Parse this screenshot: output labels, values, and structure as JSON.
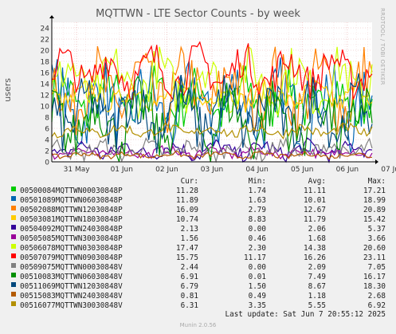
{
  "title": "MQTTWN - LTE Sector Counts - by week",
  "side_text": "RRDTOOL / TOBI OETIKER",
  "ylabel": "users",
  "legend_headers": {
    "cur": "Cur:",
    "min": "Min:",
    "avg": "Avg:",
    "max": "Max:"
  },
  "last_update": "Last update: Sat Jun  7 20:55:12 2025",
  "footer": "Munin 2.0.56",
  "chart_data": {
    "type": "line",
    "title": "MQTTWN - LTE Sector Counts - by week",
    "ylabel": "users",
    "ylim": [
      0,
      25
    ],
    "yticks": [
      0,
      2,
      4,
      6,
      8,
      10,
      12,
      14,
      16,
      18,
      20,
      22,
      24
    ],
    "x_ticks": [
      "31 May",
      "01 Jun",
      "02 Jun",
      "03 Jun",
      "04 Jun",
      "05 Jun",
      "06 Jun",
      "07 Jun"
    ],
    "x_range_days": [
      0,
      7.1
    ],
    "x_tick_days": [
      0.55,
      1.55,
      2.55,
      3.55,
      4.55,
      5.55,
      6.55,
      7.55
    ],
    "grid": true,
    "series": [
      {
        "name": "00500084MQTTWN00030848P",
        "color": "#00cc00",
        "cur": "11.28",
        "min": "1.74",
        "avg": "11.11",
        "max": "17.21"
      },
      {
        "name": "00501089MQTTWN06030848P",
        "color": "#0066b3",
        "cur": "11.89",
        "min": "1.63",
        "avg": "10.01",
        "max": "18.99"
      },
      {
        "name": "00502088MQTTWN12030848P",
        "color": "#ff8000",
        "cur": "16.09",
        "min": "2.79",
        "avg": "12.67",
        "max": "20.89"
      },
      {
        "name": "00503081MQTTWN18030848P",
        "color": "#ffcc00",
        "cur": "10.74",
        "min": "8.83",
        "avg": "11.79",
        "max": "15.42"
      },
      {
        "name": "00504092MQTTWN24030848P",
        "color": "#330099",
        "cur": "2.13",
        "min": "0.00",
        "avg": "2.06",
        "max": "5.37"
      },
      {
        "name": "00505085MQTTWN30030848P",
        "color": "#990099",
        "cur": "1.56",
        "min": "0.46",
        "avg": "1.68",
        "max": "3.66"
      },
      {
        "name": "00506078MQTTWN03030848P",
        "color": "#ccff00",
        "cur": "17.47",
        "min": "2.30",
        "avg": "14.38",
        "max": "20.60"
      },
      {
        "name": "00507079MQTTWN09030848P",
        "color": "#ff0000",
        "cur": "15.75",
        "min": "11.17",
        "avg": "16.26",
        "max": "23.11"
      },
      {
        "name": "00509075MQTTWN00030848V",
        "color": "#808080",
        "cur": "2.44",
        "min": "0.00",
        "avg": "2.09",
        "max": "7.05"
      },
      {
        "name": "00510083MQTTWN06030848V",
        "color": "#008f00",
        "cur": "6.91",
        "min": "0.01",
        "avg": "7.49",
        "max": "16.17"
      },
      {
        "name": "00511069MQTTWN12030848V",
        "color": "#00487d",
        "cur": "6.79",
        "min": "1.50",
        "avg": "8.67",
        "max": "18.30"
      },
      {
        "name": "00515083MQTTWN24030848V",
        "color": "#b35a00",
        "cur": "0.81",
        "min": "0.49",
        "avg": "1.18",
        "max": "2.68"
      },
      {
        "name": "00516077MQTTWN30030848V",
        "color": "#b38f00",
        "cur": "6.31",
        "min": "3.35",
        "avg": "5.55",
        "max": "6.92"
      }
    ]
  }
}
